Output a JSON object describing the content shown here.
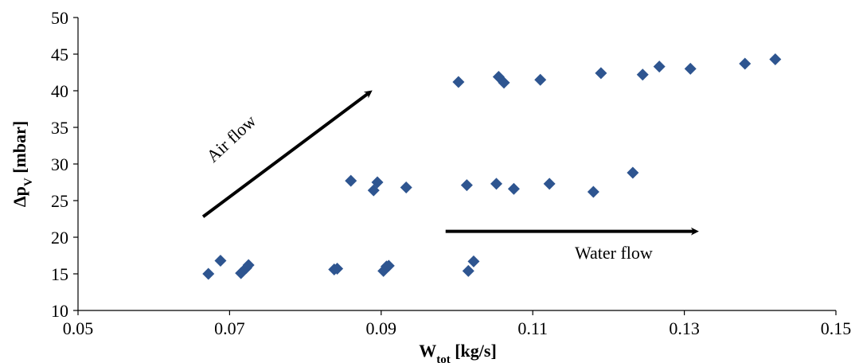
{
  "chart_data": {
    "type": "scatter",
    "title": "",
    "xlabel": {
      "main": "W",
      "sub": "tot",
      "rest": " [kg/s]"
    },
    "ylabel": {
      "main": "Δp",
      "sub": "V",
      "rest": " [mbar]"
    },
    "xlim": [
      0.05,
      0.15
    ],
    "ylim": [
      10,
      50
    ],
    "xticks": [
      "0.05",
      "0.07",
      "0.09",
      "0.11",
      "0.13",
      "0.15"
    ],
    "yticks": [
      "10",
      "15",
      "20",
      "25",
      "30",
      "35",
      "40",
      "45",
      "50"
    ],
    "grid": false,
    "marker": "diamond",
    "marker_color": "#2E5590",
    "annotations": [
      {
        "text": "Air flow",
        "arrow_from": [
          0.0665,
          22.8
        ],
        "arrow_to": [
          0.0885,
          39.8
        ]
      },
      {
        "text": "Water flow",
        "arrow_from": [
          0.0985,
          20.8
        ],
        "arrow_to": [
          0.1315,
          20.8
        ]
      }
    ],
    "points": [
      {
        "x": 0.0672,
        "y": 15.0
      },
      {
        "x": 0.0688,
        "y": 16.8
      },
      {
        "x": 0.0715,
        "y": 15.1
      },
      {
        "x": 0.0722,
        "y": 15.8
      },
      {
        "x": 0.0725,
        "y": 16.2
      },
      {
        "x": 0.0838,
        "y": 15.6
      },
      {
        "x": 0.0842,
        "y": 15.7
      },
      {
        "x": 0.086,
        "y": 27.7
      },
      {
        "x": 0.089,
        "y": 26.4
      },
      {
        "x": 0.0895,
        "y": 27.5
      },
      {
        "x": 0.0903,
        "y": 15.4
      },
      {
        "x": 0.0907,
        "y": 16.0
      },
      {
        "x": 0.091,
        "y": 16.1
      },
      {
        "x": 0.0933,
        "y": 26.8
      },
      {
        "x": 0.1002,
        "y": 41.2
      },
      {
        "x": 0.1013,
        "y": 27.1
      },
      {
        "x": 0.1015,
        "y": 15.4
      },
      {
        "x": 0.1022,
        "y": 16.7
      },
      {
        "x": 0.1052,
        "y": 27.3
      },
      {
        "x": 0.1055,
        "y": 41.9
      },
      {
        "x": 0.1062,
        "y": 41.1
      },
      {
        "x": 0.1075,
        "y": 26.6
      },
      {
        "x": 0.111,
        "y": 41.5
      },
      {
        "x": 0.1122,
        "y": 27.3
      },
      {
        "x": 0.118,
        "y": 26.2
      },
      {
        "x": 0.119,
        "y": 42.4
      },
      {
        "x": 0.1232,
        "y": 28.8
      },
      {
        "x": 0.1245,
        "y": 42.2
      },
      {
        "x": 0.1267,
        "y": 43.3
      },
      {
        "x": 0.1308,
        "y": 43.0
      },
      {
        "x": 0.138,
        "y": 43.7
      },
      {
        "x": 0.142,
        "y": 44.3
      }
    ]
  }
}
